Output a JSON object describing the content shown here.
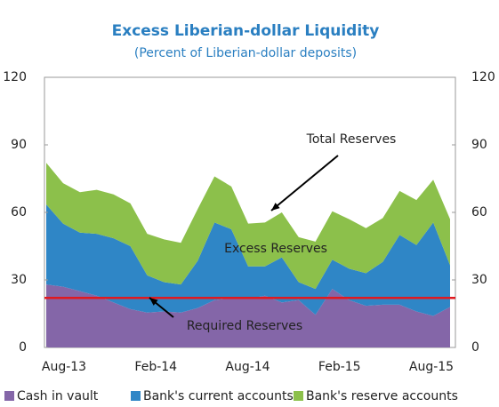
{
  "chart_data": {
    "type": "stacked_area",
    "title": "Excess Liberian-dollar Liquidity",
    "subtitle": "(Percent of Liberian-dollar deposits)",
    "categories": [
      "Aug-13",
      null,
      null,
      null,
      null,
      null,
      "Feb-14",
      null,
      null,
      null,
      null,
      null,
      "Aug-14",
      null,
      null,
      null,
      null,
      null,
      "Feb-15",
      null,
      null,
      null,
      null,
      null,
      "Aug-15"
    ],
    "series": [
      {
        "name": "Cash in vault",
        "color": "#8466a8",
        "values": [
          28,
          27,
          25,
          23,
          20,
          17,
          15.5,
          16,
          15.5,
          17.5,
          21,
          22,
          21.5,
          23,
          20,
          21,
          14.5,
          26,
          21,
          18.5,
          19,
          19,
          16,
          14,
          18
        ]
      },
      {
        "name": "Bank's current accounts",
        "color": "#2f86c6",
        "values": [
          35.5,
          28,
          26,
          27.5,
          28.5,
          28,
          16.5,
          13,
          12.5,
          21,
          34.5,
          30.5,
          14.5,
          13,
          20,
          8,
          11.5,
          13,
          14,
          14.5,
          19,
          31,
          29.5,
          41.5,
          18.5
        ]
      },
      {
        "name": "Bank's reserve accounts",
        "color": "#8cc04b",
        "values": [
          18.5,
          18,
          18,
          19.5,
          19.5,
          19,
          18.5,
          19,
          18.5,
          23,
          20.5,
          19,
          19,
          19.5,
          20,
          20,
          21,
          21.5,
          22,
          20,
          19.5,
          19.5,
          20,
          19,
          20.5
        ]
      }
    ],
    "required_reserve": 22,
    "required_reserve_color": "#e0191f",
    "annotations": [
      "Total Reserves",
      "Excess Reserves",
      "Required Reserves"
    ],
    "ylim": [
      0,
      120
    ],
    "yticks": [
      0,
      30,
      60,
      90,
      120
    ],
    "y2lim": [
      0,
      120
    ],
    "y2ticks": [
      0,
      30,
      60,
      90,
      120
    ],
    "legend": "bottom"
  }
}
